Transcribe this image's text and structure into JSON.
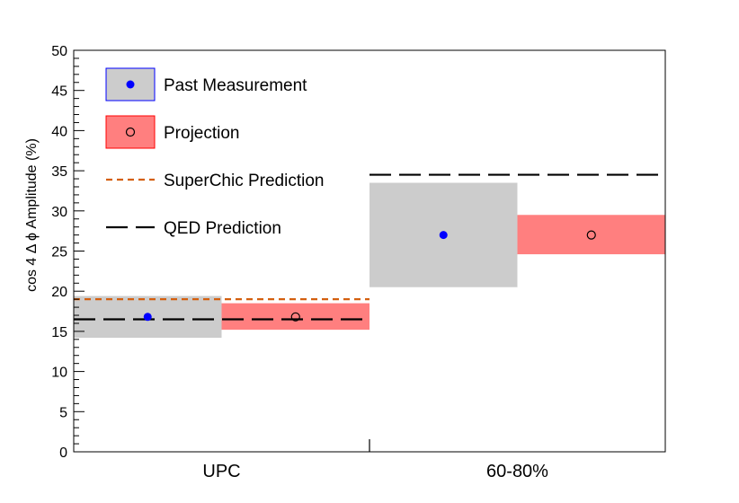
{
  "chart_data": {
    "type": "scatter",
    "ylabel": "cos 4 Δ ϕ Amplitude (%)",
    "ylim": [
      0,
      50
    ],
    "yticks": [
      0,
      5,
      10,
      15,
      20,
      25,
      30,
      35,
      40,
      45,
      50
    ],
    "categories": [
      "UPC",
      "60-80%"
    ],
    "series": [
      {
        "name": "Past Measurement",
        "marker": "filled-circle",
        "marker_color": "#0000ff",
        "box_color": "#cccccc",
        "points": [
          {
            "category": "UPC",
            "y": 16.8,
            "low": 14.2,
            "high": 19.4
          },
          {
            "category": "60-80%",
            "y": 27.0,
            "low": 20.5,
            "high": 33.5
          }
        ]
      },
      {
        "name": "Projection",
        "marker": "open-circle",
        "marker_color": "#000000",
        "box_color": "#ff7f7f",
        "points": [
          {
            "category": "UPC",
            "y": 16.8,
            "low": 15.2,
            "high": 18.5
          },
          {
            "category": "60-80%",
            "y": 27.0,
            "low": 24.6,
            "high": 29.5
          }
        ]
      }
    ],
    "lines": [
      {
        "name": "SuperChic Prediction",
        "style": "dotted",
        "color": "#d45f0f",
        "category": "UPC",
        "y": 19.0
      },
      {
        "name": "QED Prediction",
        "style": "dashed",
        "color": "#000000",
        "category": "UPC",
        "y": 16.5
      },
      {
        "name": "QED Prediction",
        "style": "dashed",
        "color": "#000000",
        "category": "60-80%",
        "y": 34.5
      }
    ],
    "legend": [
      {
        "label": "Past Measurement",
        "kind": "box-filled",
        "box_color": "#cccccc",
        "border_color": "#0000ff",
        "marker_color": "#0000ff"
      },
      {
        "label": "Projection",
        "kind": "box-open",
        "box_color": "#ff7f7f",
        "border_color": "#ff0000",
        "marker_color": "#000000"
      },
      {
        "label": "SuperChic Prediction",
        "kind": "dotted",
        "color": "#d45f0f"
      },
      {
        "label": "QED Prediction",
        "kind": "dashed",
        "color": "#000000"
      }
    ],
    "legend_position": "top-left",
    "grid": false
  }
}
